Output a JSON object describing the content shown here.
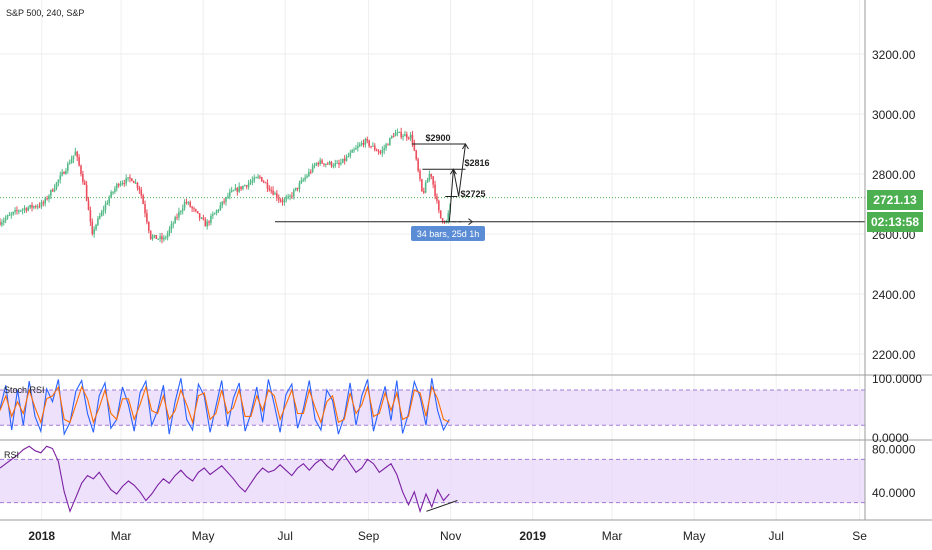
{
  "header": {
    "symbol_line": "S&P 500, 240, S&P"
  },
  "colors": {
    "up": "#53b987",
    "down": "#eb4d5c",
    "stoch_k": "#2962ff",
    "stoch_d": "#ff6d00",
    "rsi": "#7b1fa2",
    "band": "#e6d4fb",
    "badge_green": "#4caf50",
    "badge_blue": "#5b8dd6"
  },
  "chart_data": [
    {
      "type": "candlestick",
      "title": "S&P 500, 240, S&P",
      "price_ticks": [
        "3200.00",
        "3000.00",
        "2800.00",
        "2600.00",
        "2400.00",
        "2200.00"
      ],
      "price_tick_values": [
        3200,
        3000,
        2800,
        2600,
        2400,
        2200
      ],
      "ylim": [
        2130,
        3380
      ],
      "x_ticks": [
        "2018",
        "Mar",
        "May",
        "Jul",
        "Sep",
        "Nov",
        "2019",
        "Mar",
        "May",
        "Jul",
        "Se"
      ],
      "x_tick_dates": [
        "2018-01-01",
        "2018-03-01",
        "2018-05-01",
        "2018-07-01",
        "2018-09-01",
        "2018-11-01",
        "2019-01-01",
        "2019-03-01",
        "2019-05-01",
        "2019-07-01",
        "2019-09-01"
      ],
      "xlim": [
        "2017-12-01",
        "2019-09-05"
      ],
      "close_path": [
        [
          "2017-12-01",
          2640
        ],
        [
          "2017-12-15",
          2680
        ],
        [
          "2018-01-02",
          2700
        ],
        [
          "2018-01-15",
          2790
        ],
        [
          "2018-01-26",
          2872
        ],
        [
          "2018-02-02",
          2760
        ],
        [
          "2018-02-08",
          2580
        ],
        [
          "2018-02-09",
          2620
        ],
        [
          "2018-02-20",
          2720
        ],
        [
          "2018-02-27",
          2770
        ],
        [
          "2018-03-09",
          2785
        ],
        [
          "2018-03-15",
          2750
        ],
        [
          "2018-03-23",
          2590
        ],
        [
          "2018-04-02",
          2582
        ],
        [
          "2018-04-18",
          2710
        ],
        [
          "2018-05-03",
          2630
        ],
        [
          "2018-05-21",
          2735
        ],
        [
          "2018-06-12",
          2790
        ],
        [
          "2018-06-28",
          2710
        ],
        [
          "2018-07-03",
          2715
        ],
        [
          "2018-07-25",
          2840
        ],
        [
          "2018-08-10",
          2830
        ],
        [
          "2018-08-29",
          2910
        ],
        [
          "2018-09-10",
          2870
        ],
        [
          "2018-09-20",
          2935
        ],
        [
          "2018-10-03",
          2925
        ],
        [
          "2018-10-11",
          2730
        ],
        [
          "2018-10-17",
          2810
        ],
        [
          "2018-10-24",
          2655
        ],
        [
          "2018-10-29",
          2641
        ],
        [
          "2018-11-02",
          2721
        ]
      ],
      "last_price": "2721.13",
      "countdown": "02:13:58",
      "annotations": [
        {
          "text": "$2900",
          "value": 2900
        },
        {
          "text": "$2816",
          "value": 2816
        },
        {
          "text": "$2725",
          "value": 2725
        },
        {
          "text": "34 bars, 25d 1h"
        }
      ],
      "horizontal_levels": [
        2900,
        2816,
        2725,
        2641
      ]
    },
    {
      "type": "line",
      "title": "Stoch RSI",
      "ticks": [
        "100.0000",
        "0.0000"
      ],
      "tick_values": [
        100,
        0
      ],
      "ylim": [
        -5,
        102
      ],
      "bands": [
        20,
        80
      ],
      "series": [
        {
          "values": [
            48,
            88,
            12,
            80,
            20,
            95,
            35,
            10,
            82,
            60,
            98,
            5,
            25,
            78,
            96,
            40,
            8,
            70,
            92,
            15,
            30,
            85,
            55,
            10,
            75,
            95,
            20,
            45,
            88,
            5,
            60,
            100,
            30,
            12,
            90,
            70,
            8,
            52,
            96,
            18,
            66,
            92,
            10,
            40,
            85,
            25,
            98,
            55,
            8,
            72,
            90,
            15,
            48,
            96,
            30,
            12,
            80,
            62,
            5,
            35,
            92,
            20,
            70,
            98,
            10,
            50,
            86,
            28,
            96,
            6,
            40,
            94,
            68,
            20,
            100,
            45,
            12,
            30
          ]
        },
        {
          "values": [
            45,
            70,
            35,
            60,
            40,
            80,
            50,
            25,
            65,
            70,
            85,
            30,
            25,
            55,
            85,
            65,
            25,
            50,
            80,
            40,
            30,
            65,
            65,
            30,
            55,
            85,
            45,
            40,
            70,
            30,
            45,
            80,
            55,
            25,
            70,
            75,
            30,
            40,
            80,
            40,
            50,
            80,
            35,
            35,
            70,
            45,
            80,
            70,
            30,
            55,
            80,
            40,
            40,
            80,
            50,
            25,
            60,
            70,
            25,
            30,
            75,
            40,
            55,
            85,
            35,
            40,
            75,
            45,
            75,
            30,
            35,
            80,
            75,
            35,
            85,
            65,
            30,
            25
          ]
        }
      ]
    },
    {
      "type": "line",
      "title": "RSI",
      "ticks": [
        "80.0000",
        "40.0000"
      ],
      "tick_values": [
        80,
        40
      ],
      "ylim": [
        14,
        86
      ],
      "bands": [
        30,
        70
      ],
      "series": [
        {
          "values": [
            62,
            66,
            70,
            74,
            79,
            82,
            78,
            76,
            82,
            80,
            68,
            40,
            22,
            35,
            48,
            55,
            52,
            58,
            50,
            42,
            38,
            45,
            50,
            46,
            40,
            32,
            38,
            46,
            52,
            48,
            55,
            60,
            54,
            50,
            58,
            62,
            56,
            60,
            64,
            58,
            52,
            45,
            40,
            48,
            56,
            62,
            58,
            60,
            65,
            60,
            55,
            62,
            66,
            60,
            66,
            70,
            64,
            60,
            68,
            74,
            66,
            58,
            62,
            70,
            66,
            58,
            62,
            66,
            56,
            40,
            28,
            40,
            22,
            38,
            26,
            42,
            32,
            38
          ]
        }
      ]
    }
  ]
}
